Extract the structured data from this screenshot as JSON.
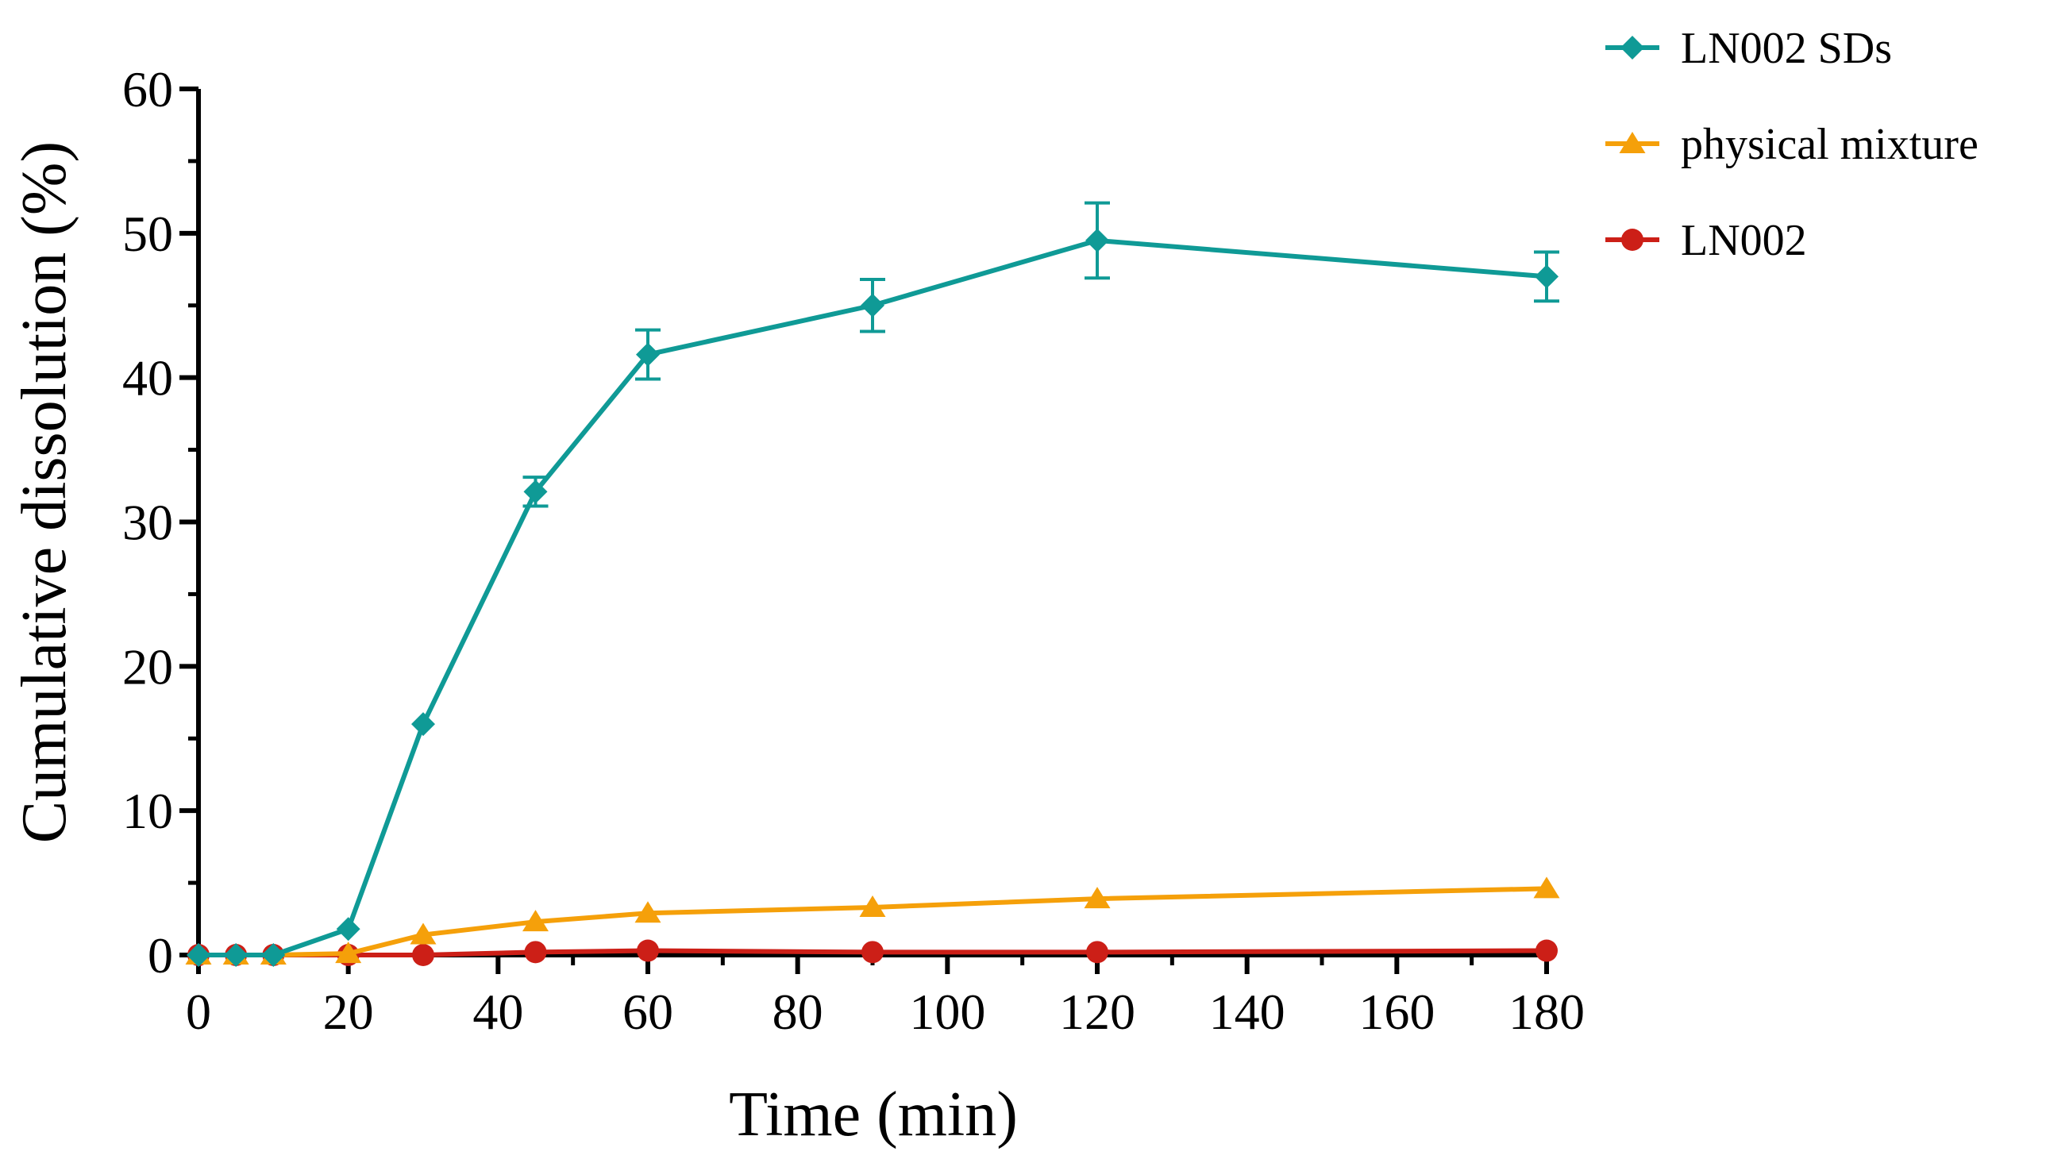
{
  "chart_data": {
    "type": "line",
    "title": "",
    "xlabel": "Time (min)",
    "ylabel": "Cumulative dissolution (%)",
    "xlim": [
      0,
      180
    ],
    "ylim": [
      0,
      60
    ],
    "xticks": [
      "0",
      "20",
      "40",
      "60",
      "80",
      "100",
      "120",
      "140",
      "160",
      "180"
    ],
    "yticks": [
      "0",
      "10",
      "20",
      "30",
      "40",
      "50",
      "60"
    ],
    "grid": false,
    "legend_position": "top-right",
    "series": [
      {
        "name": "LN002 SDs",
        "color": "#0f9a96",
        "marker": "diamond",
        "x": [
          0,
          5,
          10,
          20,
          30,
          45,
          60,
          90,
          120,
          180
        ],
        "y": [
          0,
          0,
          0,
          1.8,
          16,
          32.1,
          41.6,
          45,
          49.5,
          47
        ],
        "err": [
          0,
          0,
          0,
          0,
          0,
          1.0,
          1.7,
          1.8,
          2.6,
          1.7
        ]
      },
      {
        "name": "physical mixture",
        "color": "#f5a00a",
        "marker": "triangle",
        "x": [
          0,
          5,
          10,
          20,
          30,
          45,
          60,
          90,
          120,
          180
        ],
        "y": [
          0,
          0,
          0,
          0.1,
          1.4,
          2.3,
          2.9,
          3.3,
          3.9,
          4.6
        ],
        "err": [
          0,
          0,
          0,
          0,
          0,
          0,
          0,
          0,
          0,
          0
        ]
      },
      {
        "name": "LN002",
        "color": "#cc1f17",
        "marker": "circle",
        "x": [
          0,
          5,
          10,
          20,
          30,
          45,
          60,
          90,
          120,
          180
        ],
        "y": [
          0,
          0,
          0,
          0,
          0,
          0.2,
          0.3,
          0.2,
          0.2,
          0.3
        ],
        "err": [
          0,
          0,
          0,
          0,
          0,
          0,
          0,
          0,
          0,
          0
        ]
      }
    ]
  }
}
